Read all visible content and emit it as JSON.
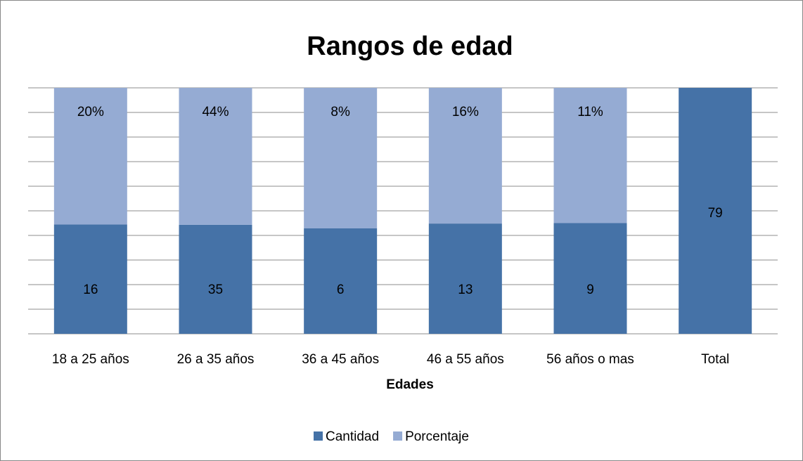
{
  "chart_data": {
    "type": "bar",
    "stacked": "percent",
    "title": "Rangos de edad",
    "x_label": "Edades",
    "categories": [
      "18 a 25 años",
      "26 a 35 años",
      "36 a 45 años",
      "46 a 55 años",
      "56 años o mas",
      "Total"
    ],
    "series": [
      {
        "name": "Cantidad",
        "color": "#4572a7",
        "values": [
          16,
          35,
          6,
          13,
          9,
          79
        ]
      },
      {
        "name": "Porcentaje",
        "color": "#95abd3",
        "values": [
          20,
          44,
          8,
          16,
          11,
          null
        ],
        "value_labels": [
          "20%",
          "44%",
          "8%",
          "16%",
          "11%",
          null
        ]
      }
    ],
    "ylim": [
      0,
      100
    ],
    "yticks": [
      0,
      10,
      20,
      30,
      40,
      50,
      60,
      70,
      80,
      90,
      100
    ],
    "grid": true,
    "legend": "bottom"
  }
}
